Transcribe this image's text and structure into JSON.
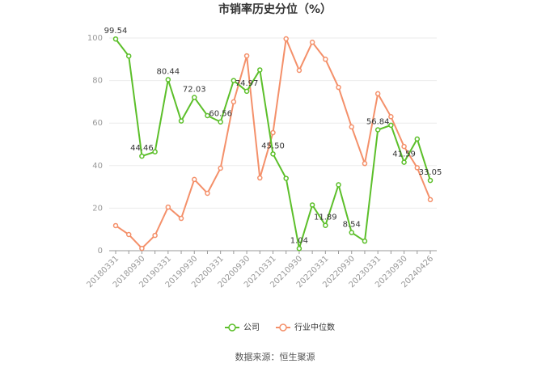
{
  "chart_data": {
    "type": "line",
    "title": "市销率历史分位（%）",
    "categories": [
      "20180331",
      null,
      "20180930",
      null,
      "20190331",
      null,
      "20190930",
      null,
      "20200331",
      null,
      "20200930",
      null,
      "20210331",
      null,
      "20210930",
      null,
      "20220331",
      null,
      "20220930",
      null,
      "20230331",
      null,
      "20230930",
      null,
      "20240426"
    ],
    "series": [
      {
        "name": "公司",
        "color": "#5cbf2a",
        "values": [
          99.54,
          91.5,
          44.46,
          46.5,
          80.44,
          61,
          72.03,
          63.5,
          60.56,
          80,
          74.97,
          85,
          45.5,
          34,
          1.04,
          21.5,
          11.89,
          31,
          8.54,
          4.5,
          56.84,
          59,
          41.59,
          52.5,
          33.05
        ],
        "value_labels": [
          "99.54",
          null,
          "44.46",
          null,
          "80.44",
          null,
          "72.03",
          null,
          "60.56",
          null,
          "74.97",
          null,
          "45.50",
          null,
          "1.04",
          null,
          "11.89",
          null,
          "8.54",
          null,
          "56.84",
          null,
          "41.59",
          null,
          "33.05"
        ]
      },
      {
        "name": "行业中位数",
        "color": "#f4906a",
        "values": [
          11.8,
          7.6,
          1.1,
          7.2,
          20.5,
          15.2,
          33.5,
          27,
          38.8,
          70,
          91.6,
          34.2,
          55.5,
          99.6,
          84.8,
          98,
          90,
          76.8,
          58.2,
          41,
          73.8,
          63,
          49,
          39,
          24
        ]
      }
    ],
    "ylim": [
      0,
      100
    ],
    "yticks": [
      0,
      20,
      40,
      60,
      80,
      100
    ],
    "grid": true,
    "source": "数据来源：恒生聚源"
  }
}
